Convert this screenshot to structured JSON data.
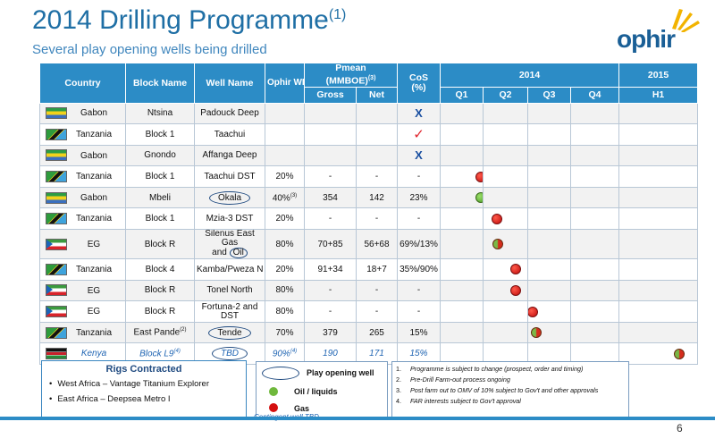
{
  "header": {
    "title": "2014 Drilling Programme",
    "title_sup": "(1)",
    "subtitle": "Several play opening wells being drilled",
    "logo_text": "ophir"
  },
  "table": {
    "columns": {
      "country": "Country",
      "block": "Block Name",
      "well": "Well Name",
      "wi": "Ophir WI",
      "pmean": "Pmean",
      "pmean_unit": "(MMBOE)",
      "pmean_sup": "(3)",
      "gross": "Gross",
      "net": "Net",
      "cos": "CoS",
      "cos_unit": "(%)",
      "year_2014": "2014",
      "q1": "Q1",
      "q2": "Q2",
      "q3": "Q3",
      "q4": "Q4",
      "year_2015": "2015",
      "h1": "H1"
    },
    "rows": [
      {
        "flag": "gabon",
        "country": "Gabon",
        "block": "Ntsina",
        "well": "Padouck Deep",
        "wi": "",
        "gross": "",
        "net": "",
        "cos": "X",
        "marker": "cross"
      },
      {
        "flag": "tanzania",
        "country": "Tanzania",
        "block": "Block 1",
        "well": "Taachui",
        "wi": "",
        "gross": "",
        "net": "",
        "cos": "✓",
        "marker": "tick"
      },
      {
        "flag": "gabon",
        "country": "Gabon",
        "block": "Gnondo",
        "well": "Affanga Deep",
        "wi": "",
        "gross": "",
        "net": "",
        "cos": "X",
        "marker": "cross"
      },
      {
        "flag": "tanzania",
        "country": "Tanzania",
        "block": "Block 1",
        "well": "Taachui DST",
        "wi": "20%",
        "gross": "-",
        "net": "-",
        "cos": "-",
        "timing": 0.96,
        "dot": "gas"
      },
      {
        "flag": "gabon",
        "country": "Gabon",
        "block": "Mbeli",
        "well": "Okala",
        "wi": "40%",
        "wi_sup": "(3)",
        "gross": "354",
        "net": "142",
        "cos": "23%",
        "timing": 0.96,
        "dot": "oil",
        "play": true
      },
      {
        "flag": "tanzania",
        "country": "Tanzania",
        "block": "Block 1",
        "well": "Mzia-3 DST",
        "wi": "20%",
        "gross": "-",
        "net": "-",
        "cos": "-",
        "timing": 1.3,
        "dot": "gas"
      },
      {
        "flag": "eg",
        "country": "EG",
        "block": "Block R",
        "well_line1": "Silenus East Gas",
        "well_line2a": "and ",
        "well_line2b": "Oil",
        "wi": "80%",
        "gross": "70+85",
        "net": "56+68",
        "cos": "69%/13%",
        "timing": 1.33,
        "dot": "mixed"
      },
      {
        "flag": "tanzania",
        "country": "Tanzania",
        "block": "Block 4",
        "well": "Kamba/Pweza N",
        "wi": "20%",
        "gross": "91+34",
        "net": "18+7",
        "cos": "35%/90%",
        "timing": 1.73,
        "dot": "gas"
      },
      {
        "flag": "eg",
        "country": "EG",
        "block": "Block R",
        "well": "Tonel North",
        "wi": "80%",
        "gross": "-",
        "net": "-",
        "cos": "-",
        "timing": 1.73,
        "dot": "gas"
      },
      {
        "flag": "eg",
        "country": "EG",
        "block": "Block R",
        "well_line1": "Fortuna-2 and",
        "well_line2": "DST",
        "wi": "80%",
        "gross": "-",
        "net": "-",
        "cos": "-",
        "timing": 2.1,
        "dot": "gas"
      },
      {
        "flag": "tanzania",
        "country": "Tanzania",
        "block": "East Pande",
        "block_sup": "(2)",
        "well": "Tende",
        "wi": "70%",
        "gross": "379",
        "net": "265",
        "cos": "15%",
        "timing": 2.2,
        "dot": "mixed",
        "play": true
      },
      {
        "flag": "kenya",
        "country": "Kenya",
        "block": "Block L9",
        "block_sup": "(4)",
        "well": "TBD",
        "wi": "90%",
        "wi_sup": "(4)",
        "gross": "190",
        "net": "171",
        "cos": "15%",
        "timing_h1": true,
        "dot": "mixed",
        "play": true,
        "contingent": true
      }
    ]
  },
  "rigs": {
    "title": "Rigs Contracted",
    "items": [
      "West Africa – Vantage Titanium Explorer",
      "East Africa – Deepsea Metro I"
    ]
  },
  "legend": {
    "play": "Play opening well",
    "oil": "Oil / liquids",
    "gas": "Gas",
    "contingent": "Contingent well TBD",
    "colors": {
      "oil": "#6fb83c",
      "gas": "#d40f0f",
      "outline": "#1f4a80"
    }
  },
  "notes": [
    {
      "n": "1.",
      "text": "Programme is subject to change (prospect, order and timing)"
    },
    {
      "n": "2.",
      "text": "Pre-Drill Farm-out process ongoing"
    },
    {
      "n": "3.",
      "text": "Post farm out to OMV of 10% subject to Gov't and other approvals"
    },
    {
      "n": "4.",
      "text": "FAR interests subject to Gov't approval"
    }
  ],
  "page_number": "6"
}
